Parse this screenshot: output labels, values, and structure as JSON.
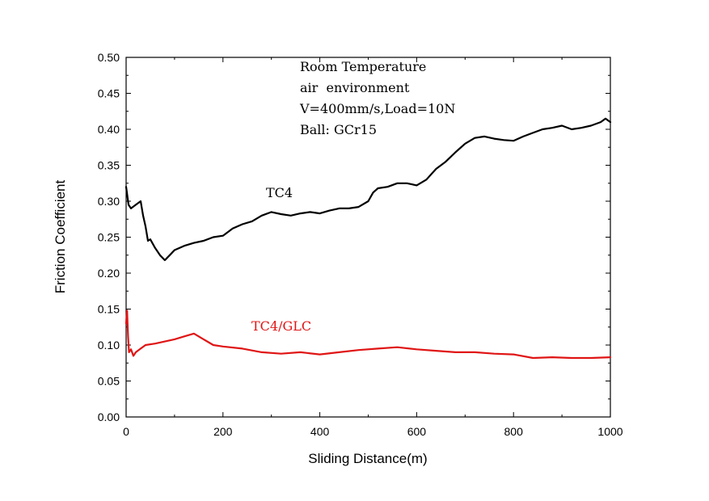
{
  "chart_data": {
    "type": "line",
    "xlabel": "Sliding Distance(m)",
    "ylabel": "Friction Coefficient",
    "xlim": [
      0,
      1000
    ],
    "ylim": [
      0,
      0.5
    ],
    "x_ticks": [
      "0",
      "200",
      "400",
      "600",
      "800",
      "1000"
    ],
    "y_ticks": [
      "0.00",
      "0.05",
      "0.10",
      "0.15",
      "0.20",
      "0.25",
      "0.30",
      "0.35",
      "0.40",
      "0.45",
      "0.50"
    ],
    "grid": false,
    "annotation_lines": [
      "Room Temperature",
      "air  environment",
      "V=400mm/s,Load=10N",
      "Ball: GCr15"
    ],
    "series": [
      {
        "name": "TC4",
        "color": "#000000",
        "x": [
          0,
          5,
          10,
          20,
          30,
          35,
          40,
          45,
          50,
          60,
          70,
          80,
          90,
          100,
          120,
          140,
          160,
          180,
          200,
          220,
          240,
          260,
          280,
          300,
          320,
          340,
          360,
          380,
          400,
          420,
          440,
          460,
          480,
          500,
          510,
          520,
          540,
          560,
          580,
          600,
          620,
          640,
          660,
          680,
          700,
          720,
          740,
          760,
          780,
          800,
          820,
          840,
          860,
          880,
          900,
          920,
          940,
          960,
          980,
          990,
          1000
        ],
        "y": [
          0.32,
          0.295,
          0.29,
          0.295,
          0.3,
          0.28,
          0.265,
          0.245,
          0.247,
          0.235,
          0.225,
          0.218,
          0.225,
          0.232,
          0.238,
          0.242,
          0.245,
          0.25,
          0.252,
          0.262,
          0.268,
          0.272,
          0.28,
          0.285,
          0.282,
          0.28,
          0.283,
          0.285,
          0.283,
          0.287,
          0.29,
          0.29,
          0.292,
          0.3,
          0.312,
          0.318,
          0.32,
          0.325,
          0.325,
          0.322,
          0.33,
          0.345,
          0.355,
          0.368,
          0.38,
          0.388,
          0.39,
          0.387,
          0.385,
          0.384,
          0.39,
          0.395,
          0.4,
          0.402,
          0.405,
          0.4,
          0.402,
          0.405,
          0.41,
          0.415,
          0.41
        ]
      },
      {
        "name": "TC4/GLC",
        "color": "#e01414",
        "x": [
          0,
          2,
          4,
          6,
          10,
          15,
          20,
          30,
          40,
          60,
          80,
          100,
          120,
          140,
          160,
          180,
          200,
          240,
          280,
          320,
          360,
          400,
          440,
          480,
          520,
          560,
          600,
          640,
          680,
          720,
          760,
          800,
          840,
          880,
          920,
          960,
          1000
        ],
        "y": [
          0.13,
          0.148,
          0.112,
          0.09,
          0.094,
          0.085,
          0.09,
          0.095,
          0.1,
          0.102,
          0.105,
          0.108,
          0.112,
          0.116,
          0.108,
          0.1,
          0.098,
          0.095,
          0.09,
          0.088,
          0.09,
          0.087,
          0.09,
          0.093,
          0.095,
          0.097,
          0.094,
          0.092,
          0.09,
          0.09,
          0.088,
          0.087,
          0.082,
          0.083,
          0.082,
          0.082,
          0.083
        ]
      }
    ]
  }
}
